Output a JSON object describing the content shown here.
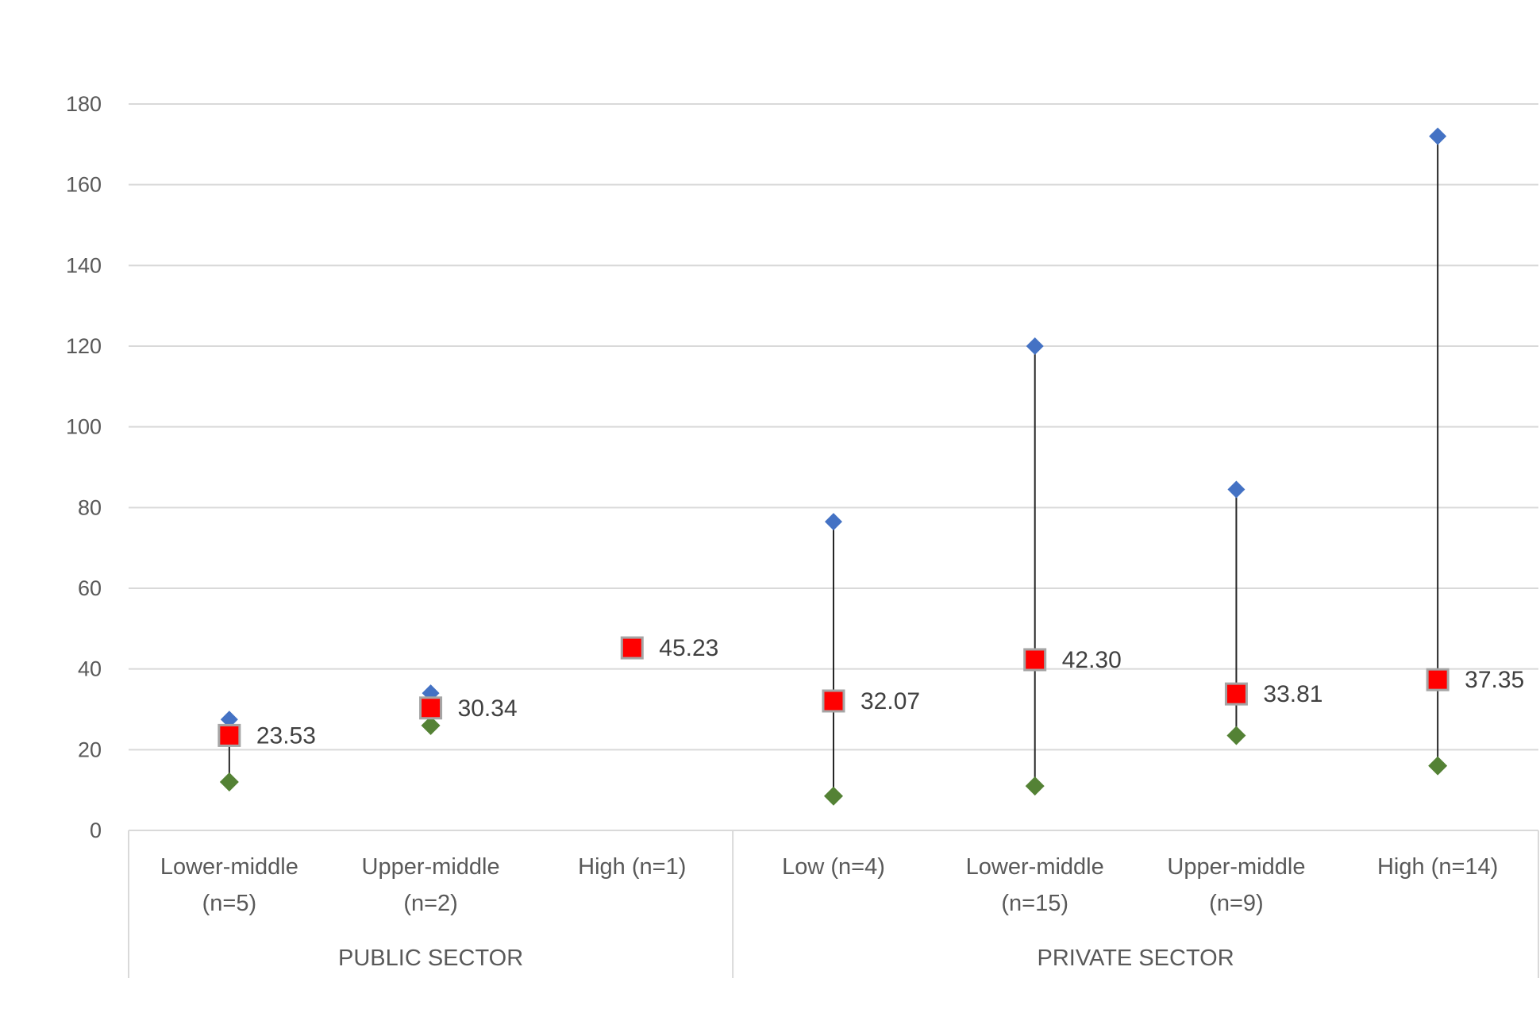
{
  "chart_data": {
    "type": "scatter",
    "title": "",
    "xlabel": "",
    "ylabel": "",
    "ylim": [
      0,
      180
    ],
    "yticks": [
      0,
      20,
      40,
      60,
      80,
      100,
      120,
      140,
      160,
      180
    ],
    "grid": true,
    "legend": "none",
    "groups": [
      {
        "label": "PUBLIC SECTOR",
        "categories": [
          "Lower-middle (n=5)",
          "Upper-middle (n=2)",
          "High (n=1)"
        ]
      },
      {
        "label": "PRIVATE SECTOR",
        "categories": [
          "Low (n=4)",
          "Lower-middle (n=15)",
          "Upper-middle (n=9)",
          "High (n=14)"
        ]
      }
    ],
    "categories": [
      {
        "lines": [
          "Lower-middle",
          "(n=5)"
        ],
        "group": "PUBLIC SECTOR"
      },
      {
        "lines": [
          "Upper-middle",
          "(n=2)"
        ],
        "group": "PUBLIC SECTOR"
      },
      {
        "lines": [
          "High (n=1)"
        ],
        "group": "PUBLIC SECTOR"
      },
      {
        "lines": [
          "Low (n=4)"
        ],
        "group": "PRIVATE SECTOR"
      },
      {
        "lines": [
          "Lower-middle",
          "(n=15)"
        ],
        "group": "PRIVATE SECTOR"
      },
      {
        "lines": [
          "Upper-middle",
          "(n=9)"
        ],
        "group": "PRIVATE SECTOR"
      },
      {
        "lines": [
          "High (n=14)"
        ],
        "group": "PRIVATE SECTOR"
      }
    ],
    "series": [
      {
        "role": "max",
        "marker": "diamond",
        "color": "#4472c4",
        "values": [
          27.5,
          34,
          null,
          76.5,
          120,
          84.5,
          172
        ]
      },
      {
        "role": "min",
        "marker": "diamond",
        "color": "#548235",
        "values": [
          12,
          26,
          null,
          8.5,
          11,
          23.5,
          16
        ]
      },
      {
        "role": "mean",
        "marker": "square",
        "color": "#ff0000",
        "border": "#a5a5a5",
        "values": [
          23.53,
          30.34,
          45.23,
          32.07,
          42.3,
          33.81,
          37.35
        ],
        "labels": [
          "23.53",
          "30.34",
          "45.23",
          "32.07",
          "42.30",
          "33.81",
          "37.35"
        ]
      }
    ]
  }
}
